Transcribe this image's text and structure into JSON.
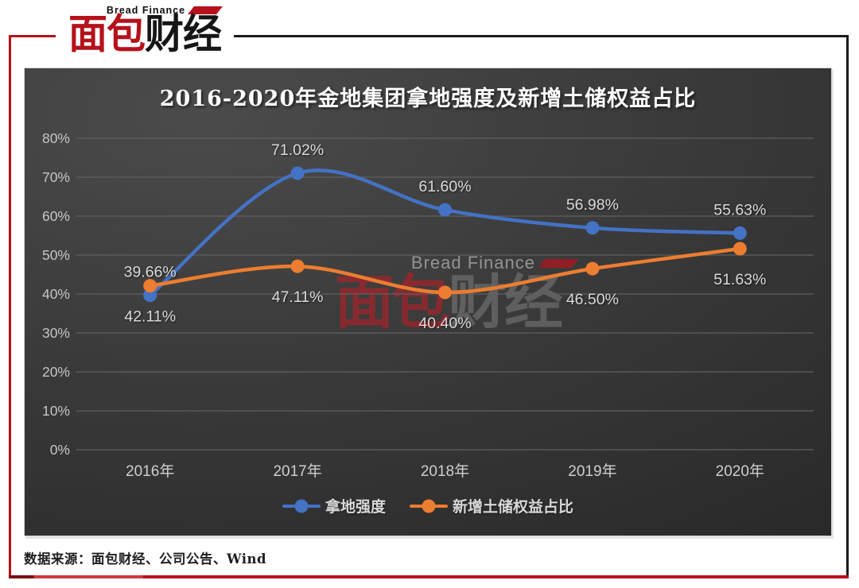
{
  "logo": {
    "brand_en": "Bread Finance",
    "brand_red": "面包",
    "brand_black": "财经"
  },
  "chart_data": {
    "type": "line",
    "title": "2016-2020年金地集团拿地强度及新增土储权益占比",
    "categories": [
      "2016年",
      "2017年",
      "2018年",
      "2019年",
      "2020年"
    ],
    "series": [
      {
        "name": "拿地强度",
        "color": "#4472c4",
        "values": [
          39.66,
          71.02,
          61.6,
          56.98,
          55.63
        ],
        "label_position": "above"
      },
      {
        "name": "新增土储权益占比",
        "color": "#ed7d31",
        "values": [
          42.11,
          47.11,
          40.4,
          46.5,
          51.63
        ],
        "label_position": "below"
      }
    ],
    "ylim": [
      0,
      80
    ],
    "ytick_step": 10,
    "ytick_suffix": "%",
    "value_suffix": "%",
    "value_decimals": 2,
    "grid": true,
    "smooth": true,
    "legend_position": "bottom-center"
  },
  "watermark": {
    "en": "Bread Finance",
    "zh_red": "面包",
    "zh_gray": "财经"
  },
  "footer": {
    "source_label": "数据来源：面包财经、公司公告、Wind"
  },
  "theme": {
    "accent_red": "#b5121b",
    "frame_black": "#1a1a1a",
    "grid_color": "#606060",
    "tick_color": "#c6c6c6",
    "value_label_color": "#dadada",
    "title_color": "#ffffff"
  }
}
